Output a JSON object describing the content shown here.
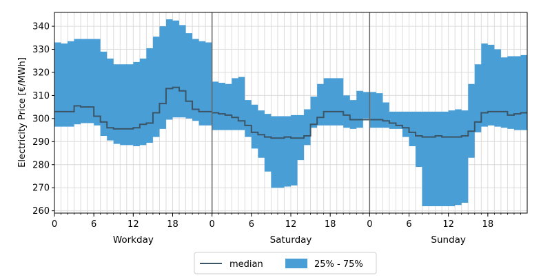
{
  "chart_data": {
    "type": "area",
    "ylabel": "Electricity Price [€/MWh]",
    "ylim": [
      259,
      346
    ],
    "yticks": [
      260,
      270,
      280,
      290,
      300,
      310,
      320,
      330,
      340
    ],
    "hours_per_panel": 24,
    "hour_ticks": [
      0,
      6,
      12,
      18
    ],
    "grid": true,
    "legend_position": "bottom-center",
    "colors": {
      "band": "#4a9ed6",
      "median": "#3b5566",
      "divider": "#666666",
      "grid": "#dcdcdc"
    },
    "legend": {
      "median_label": "median",
      "band_label": "25% - 75%"
    },
    "panels": [
      {
        "name": "Workday",
        "q25": [
          296.5,
          296.5,
          296.5,
          297.5,
          298.0,
          298.0,
          297.0,
          292.5,
          290.5,
          289.0,
          288.5,
          288.5,
          288.0,
          288.5,
          289.5,
          292.0,
          295.5,
          299.5,
          300.5,
          300.5,
          300.0,
          299.0,
          297.0,
          297.0
        ],
        "q75": [
          333.0,
          332.5,
          333.5,
          334.5,
          334.5,
          334.5,
          334.5,
          329.0,
          326.0,
          323.5,
          323.5,
          323.5,
          324.5,
          326.0,
          330.5,
          335.5,
          340.0,
          343.0,
          342.5,
          340.5,
          337.0,
          334.5,
          333.5,
          333.0
        ],
        "median": [
          303.0,
          303.0,
          303.0,
          305.5,
          305.0,
          305.0,
          301.0,
          298.5,
          296.0,
          295.5,
          295.5,
          295.5,
          296.0,
          297.5,
          298.0,
          302.5,
          306.5,
          313.0,
          313.5,
          312.0,
          307.5,
          304.0,
          303.0,
          303.0
        ]
      },
      {
        "name": "Saturday",
        "q25": [
          295.0,
          295.0,
          295.0,
          295.0,
          295.0,
          292.0,
          287.0,
          283.0,
          277.0,
          270.0,
          270.0,
          270.5,
          271.0,
          282.0,
          288.5,
          296.0,
          297.0,
          297.0,
          297.0,
          297.0,
          296.0,
          295.5,
          296.0,
          300.0
        ],
        "q75": [
          316.0,
          315.5,
          315.0,
          317.5,
          318.0,
          308.0,
          306.0,
          303.5,
          302.0,
          301.0,
          301.0,
          301.0,
          301.5,
          301.5,
          304.0,
          309.5,
          315.0,
          317.5,
          317.5,
          317.5,
          310.0,
          308.0,
          312.0,
          311.5
        ],
        "median": [
          302.5,
          302.0,
          301.5,
          300.5,
          299.0,
          297.0,
          294.0,
          293.0,
          292.0,
          291.5,
          291.5,
          292.0,
          291.5,
          291.5,
          292.5,
          297.5,
          300.5,
          303.0,
          303.0,
          303.0,
          301.5,
          299.5,
          299.5,
          299.5
        ]
      },
      {
        "name": "Sunday",
        "q25": [
          296.0,
          296.0,
          296.0,
          295.5,
          295.5,
          292.0,
          288.0,
          279.0,
          262.0,
          262.0,
          262.0,
          262.0,
          262.0,
          262.5,
          263.5,
          283.0,
          294.0,
          296.5,
          297.0,
          296.5,
          296.0,
          295.5,
          295.0,
          295.0
        ],
        "q75": [
          311.5,
          311.0,
          307.0,
          303.0,
          303.0,
          303.0,
          303.0,
          303.0,
          303.0,
          303.0,
          303.0,
          303.0,
          303.5,
          304.0,
          303.5,
          315.0,
          323.5,
          332.5,
          332.0,
          330.0,
          326.5,
          327.0,
          327.0,
          327.5
        ],
        "median": [
          299.5,
          299.5,
          299.0,
          298.0,
          297.0,
          296.0,
          294.0,
          292.5,
          292.0,
          292.0,
          292.5,
          292.0,
          292.0,
          292.0,
          292.5,
          294.5,
          298.5,
          302.5,
          303.0,
          303.0,
          303.0,
          301.5,
          302.0,
          302.5
        ]
      }
    ]
  }
}
